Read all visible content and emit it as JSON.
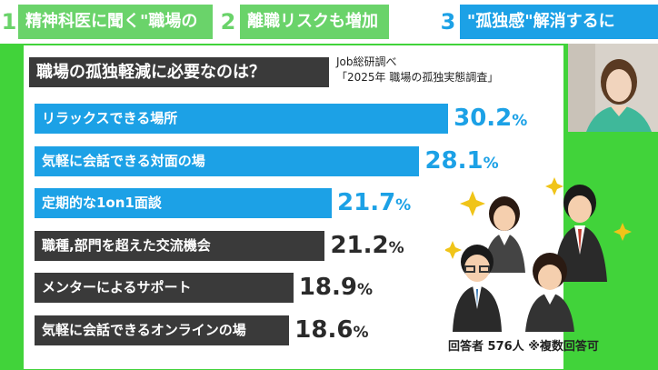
{
  "header": {
    "tabs": [
      {
        "num": "1",
        "label": "精神科医に聞く\"職場の孤独感\""
      },
      {
        "num": "2",
        "label": "離職リスクも増加"
      },
      {
        "num": "3",
        "label": "\"孤独感\"解消するには？"
      }
    ]
  },
  "panel": {
    "source_line1": "Job総研調べ",
    "source_line2": "「2025年  職場の孤独実態調査」",
    "footnote": "回答者  576人  ※複数回答可"
  },
  "colors": {
    "highlight_bar": "#1ca1e6",
    "dark_bar": "#3a3a3a",
    "highlight_value": "#1ca1e6",
    "dark_value": "#2a2a2a",
    "background": "#41d33a"
  },
  "chart_data": {
    "type": "bar",
    "orientation": "horizontal",
    "title": "職場の孤独軽減に必要なのは？",
    "categories": [
      "リラックスできる場所",
      "気軽に会話できる対面の場",
      "定期的な1on1面談",
      "職種,部門を超えた交流機会",
      "メンターによるサポート",
      "気軽に会話できるオンラインの場"
    ],
    "values": [
      30.2,
      28.1,
      21.7,
      21.2,
      18.9,
      18.6
    ],
    "value_labels": [
      "30.2",
      "28.1",
      "21.7",
      "21.2",
      "18.9",
      "18.6"
    ],
    "unit": "%",
    "highlighted": [
      true,
      true,
      true,
      false,
      false,
      false
    ]
  }
}
